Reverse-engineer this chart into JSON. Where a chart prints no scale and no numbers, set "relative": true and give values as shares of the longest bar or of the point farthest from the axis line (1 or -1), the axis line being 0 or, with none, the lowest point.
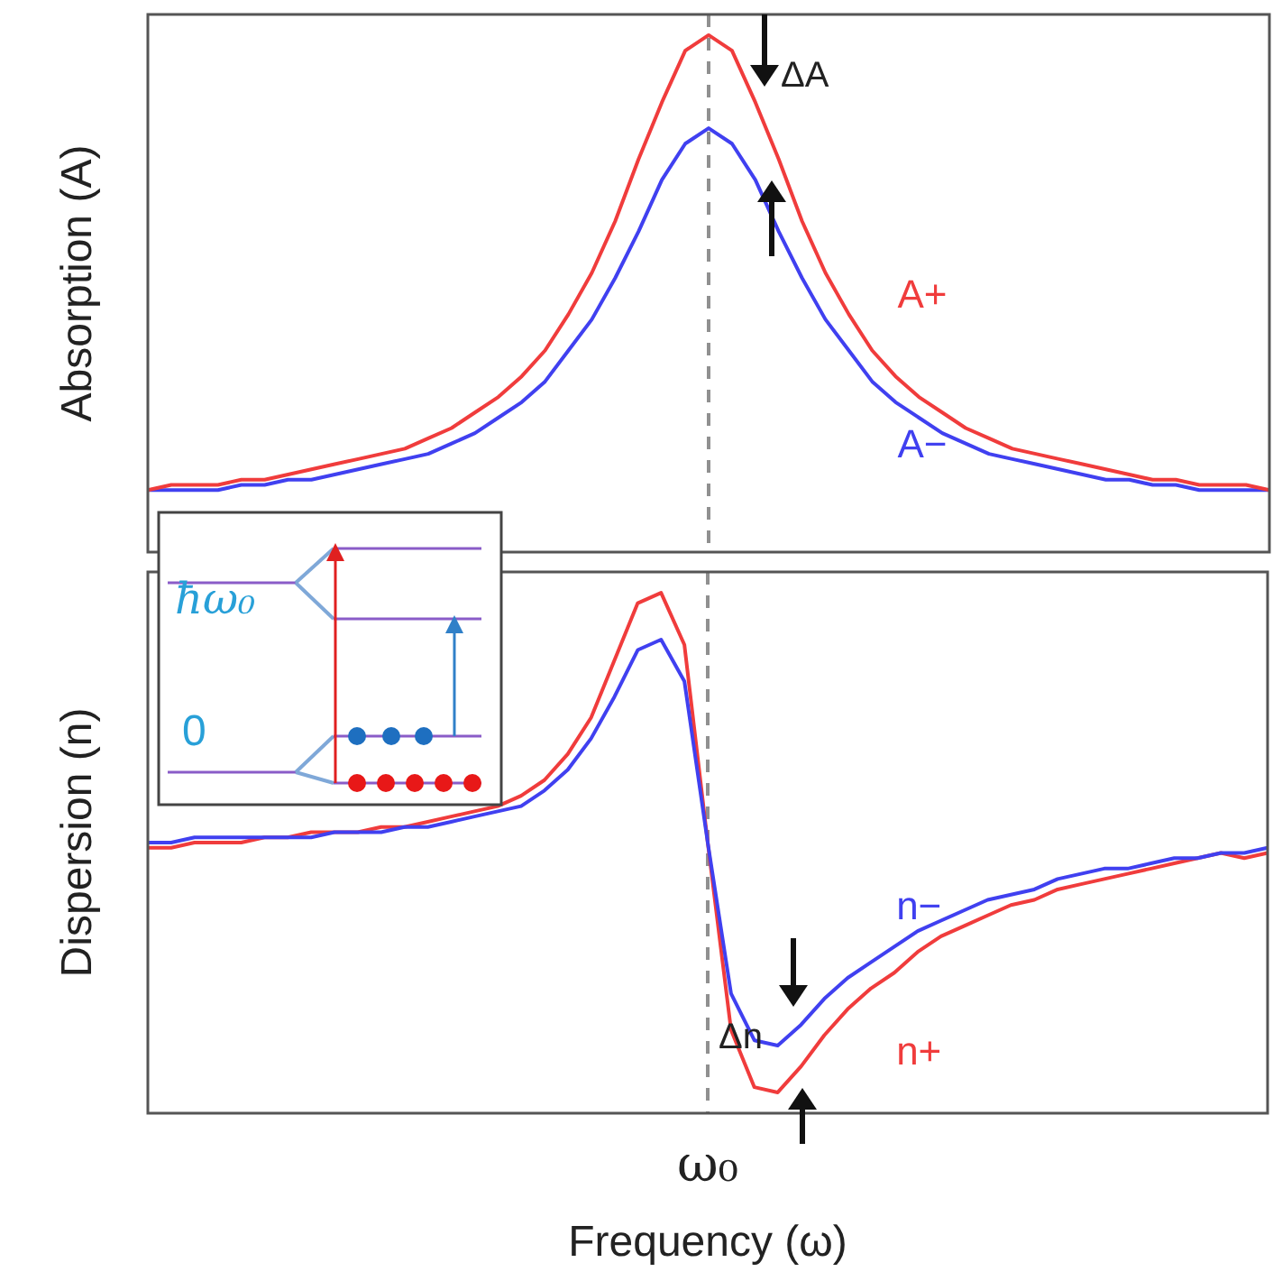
{
  "chart_data": [
    {
      "type": "line",
      "ylabel": "Absorption (A)",
      "relative": true,
      "tick_labels": false,
      "grid": false,
      "legend": false,
      "categories": [
        null,
        null,
        null,
        null,
        null,
        null,
        null,
        null,
        null,
        null,
        null,
        null,
        null,
        null,
        null,
        null,
        null,
        null,
        null,
        null,
        null,
        null,
        null,
        null,
        null,
        null,
        null,
        null,
        null,
        null,
        null,
        null,
        null,
        null,
        null,
        null,
        null,
        null,
        null,
        null,
        null,
        null,
        null,
        null,
        null,
        null,
        null,
        null,
        null
      ],
      "series": [
        {
          "name": "A+",
          "color": "#f03c3c",
          "values": [
            0.12,
            0.13,
            0.13,
            0.13,
            0.14,
            0.14,
            0.15,
            0.16,
            0.17,
            0.18,
            0.19,
            0.2,
            0.22,
            0.24,
            0.27,
            0.3,
            0.34,
            0.39,
            0.46,
            0.54,
            0.64,
            0.76,
            0.87,
            0.97,
            1.0,
            0.97,
            0.87,
            0.76,
            0.64,
            0.54,
            0.46,
            0.39,
            0.34,
            0.3,
            0.27,
            0.24,
            0.22,
            0.2,
            0.19,
            0.18,
            0.17,
            0.16,
            0.15,
            0.14,
            0.14,
            0.13,
            0.13,
            0.13,
            0.12
          ]
        },
        {
          "name": "A−",
          "color": "#4040f0",
          "values": [
            0.12,
            0.12,
            0.12,
            0.12,
            0.13,
            0.13,
            0.14,
            0.14,
            0.15,
            0.16,
            0.17,
            0.18,
            0.19,
            0.21,
            0.23,
            0.26,
            0.29,
            0.33,
            0.39,
            0.45,
            0.53,
            0.62,
            0.72,
            0.79,
            0.82,
            0.79,
            0.72,
            0.62,
            0.53,
            0.45,
            0.39,
            0.33,
            0.29,
            0.26,
            0.23,
            0.21,
            0.19,
            0.18,
            0.17,
            0.16,
            0.15,
            0.14,
            0.14,
            0.13,
            0.13,
            0.12,
            0.12,
            0.12,
            0.12
          ]
        }
      ],
      "ref_lines": [
        {
          "axis": "x",
          "color": "#909090",
          "line_style": "dashed"
        }
      ],
      "annotations": [
        "ΔA"
      ]
    },
    {
      "type": "line",
      "ylabel": "Dispersion (n)",
      "xlabel": "Frequency (ω)",
      "relative": true,
      "tick_labels": "x",
      "grid": false,
      "legend": false,
      "categories": [
        null,
        null,
        null,
        null,
        null,
        null,
        null,
        null,
        null,
        null,
        null,
        null,
        null,
        null,
        null,
        null,
        null,
        null,
        null,
        null,
        null,
        null,
        null,
        null,
        null,
        null,
        null,
        null,
        null,
        null,
        null,
        null,
        null,
        null,
        null,
        null,
        null,
        null,
        null,
        null,
        null,
        null,
        null,
        null,
        null,
        null,
        null,
        null,
        null
      ],
      "series": [
        {
          "name": "n−",
          "color": "#4040f0",
          "values": [
            0.52,
            0.52,
            0.53,
            0.53,
            0.53,
            0.53,
            0.53,
            0.53,
            0.54,
            0.54,
            0.54,
            0.55,
            0.55,
            0.56,
            0.57,
            0.58,
            0.59,
            0.62,
            0.66,
            0.72,
            0.8,
            0.89,
            0.91,
            0.83,
            0.52,
            0.23,
            0.14,
            0.13,
            0.17,
            0.22,
            0.26,
            0.29,
            0.32,
            0.35,
            0.37,
            0.39,
            0.41,
            0.42,
            0.43,
            0.45,
            0.46,
            0.47,
            0.47,
            0.48,
            0.49,
            0.49,
            0.5,
            0.5,
            0.51
          ]
        },
        {
          "name": "n+",
          "color": "#f03c3c",
          "values": [
            0.51,
            0.51,
            0.52,
            0.52,
            0.52,
            0.53,
            0.53,
            0.54,
            0.54,
            0.54,
            0.55,
            0.55,
            0.56,
            0.57,
            0.58,
            0.59,
            0.61,
            0.64,
            0.69,
            0.76,
            0.87,
            0.98,
            1.0,
            0.9,
            0.52,
            0.16,
            0.05,
            0.04,
            0.09,
            0.15,
            0.2,
            0.24,
            0.27,
            0.31,
            0.34,
            0.36,
            0.38,
            0.4,
            0.41,
            0.43,
            0.44,
            0.45,
            0.46,
            0.47,
            0.48,
            0.49,
            0.5,
            0.49,
            0.5
          ]
        }
      ],
      "ref_lines": [
        {
          "axis": "x",
          "label": "ω₀",
          "color": "#909090",
          "line_style": "dashed"
        }
      ],
      "annotations": [
        "Δn",
        "ħω₀",
        "0"
      ]
    }
  ]
}
